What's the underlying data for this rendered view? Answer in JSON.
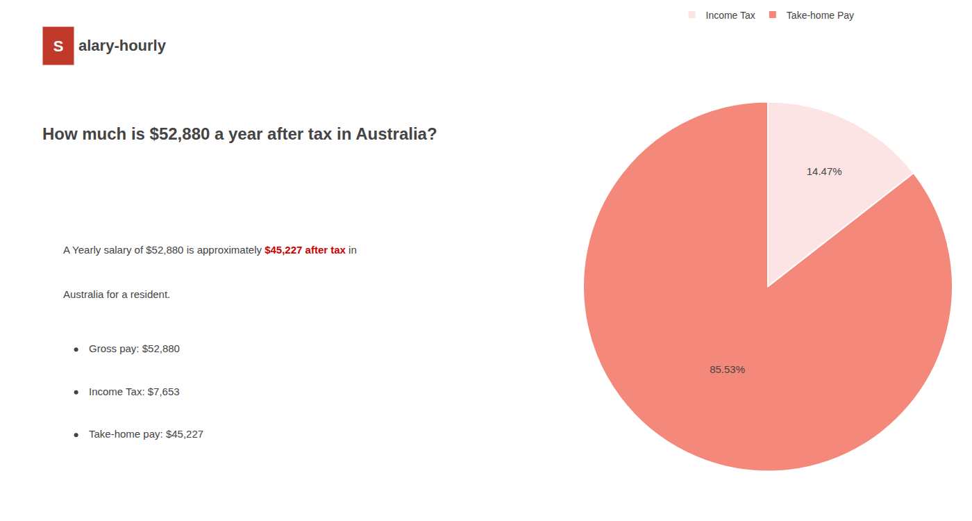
{
  "chart_data": {
    "type": "pie",
    "title": "How much is $52,880 a year after tax in Australia?",
    "categories": [
      "Income Tax",
      "Take-home Pay"
    ],
    "values": [
      14.47,
      85.53
    ],
    "value_labels": [
      "14.47%",
      "85.53%"
    ],
    "colors": [
      "#fce4e4",
      "#f4897b"
    ],
    "data_labels": true,
    "legend": "top",
    "annotations": [
      [
        {
          "text": "S",
          "color": "#c0392b"
        },
        {
          "text": "alary-hourly"
        }
      ],
      [
        {
          "text": "A Yearly salary of $52,880 is approximately "
        },
        {
          "text": "$45,227 after tax",
          "color": "#cc0000"
        },
        {
          "text": " in"
        }
      ],
      [
        {
          "text": "Australia for a resident."
        }
      ]
    ],
    "bullets": [
      "Gross pay: $52,880",
      "Income Tax: $7,653",
      "Take-home pay: $45,227"
    ]
  }
}
